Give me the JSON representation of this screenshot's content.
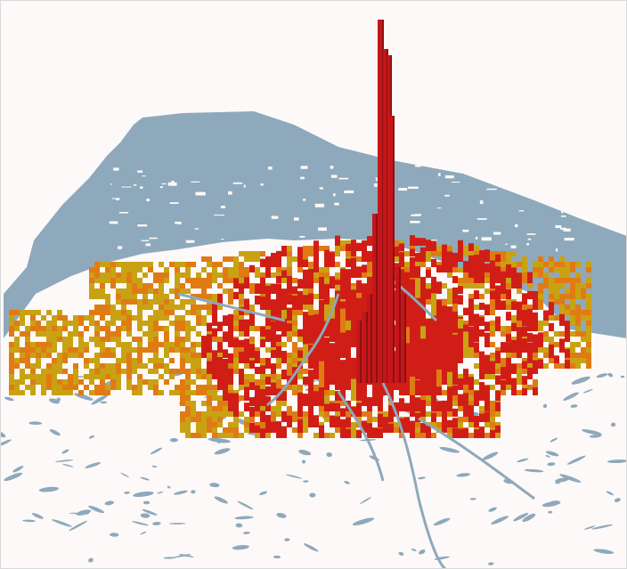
{
  "map": {
    "type": "3d-extruded-grid-map",
    "colors": {
      "background": "#fdf9f8",
      "water": "#8ea9bb",
      "low_density": "#c9a213",
      "mid_density": "#e07b14",
      "high_density": "#d01e16",
      "peak": "#c5161a",
      "peak_shadow": "#8e0f11"
    },
    "legend": null
  }
}
